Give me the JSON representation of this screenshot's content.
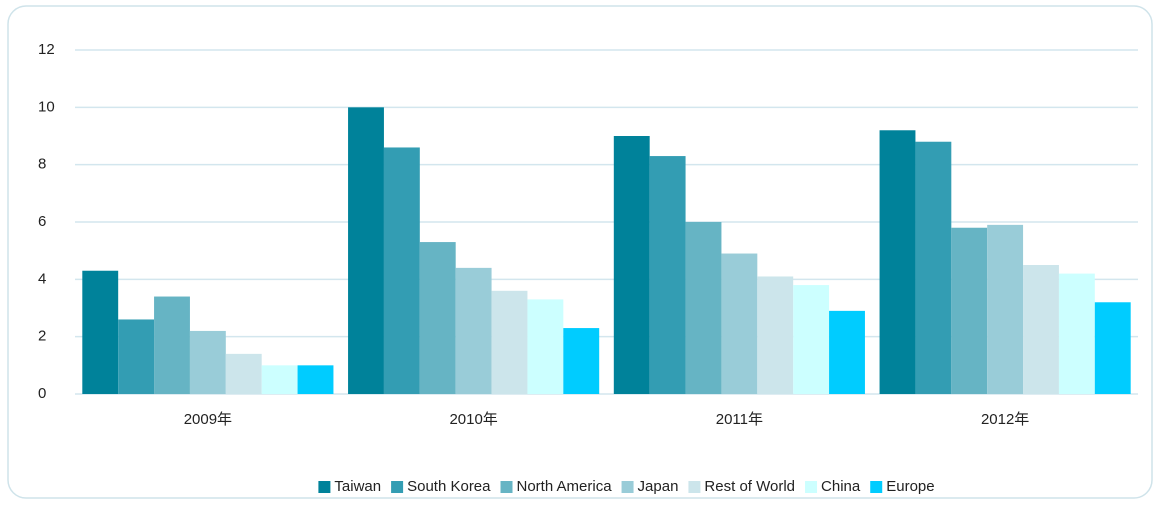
{
  "chart_data": {
    "type": "bar",
    "categories": [
      "2009年",
      "2010年",
      "2011年",
      "2012年"
    ],
    "series": [
      {
        "name": "Taiwan",
        "color": "#00829a",
        "values": [
          4.3,
          10.0,
          9.0,
          9.2
        ]
      },
      {
        "name": "South Korea",
        "color": "#339db3",
        "values": [
          2.6,
          8.6,
          8.3,
          8.8
        ]
      },
      {
        "name": "North America",
        "color": "#66b4c4",
        "values": [
          3.4,
          5.3,
          6.0,
          5.8
        ]
      },
      {
        "name": "Japan",
        "color": "#99ccd8",
        "values": [
          2.2,
          4.4,
          4.9,
          5.9
        ]
      },
      {
        "name": "Rest of World",
        "color": "#cce5eb",
        "values": [
          1.4,
          3.6,
          4.1,
          4.5
        ]
      },
      {
        "name": "China",
        "color": "#ccffff",
        "values": [
          1.0,
          3.3,
          3.8,
          4.2
        ]
      },
      {
        "name": "Europe",
        "color": "#00ccff",
        "values": [
          1.0,
          2.3,
          2.9,
          3.2
        ]
      }
    ],
    "ylim": [
      0,
      12
    ],
    "yticks": [
      0,
      2,
      4,
      6,
      8,
      10,
      12
    ],
    "grid": true,
    "legend": "bottom"
  }
}
